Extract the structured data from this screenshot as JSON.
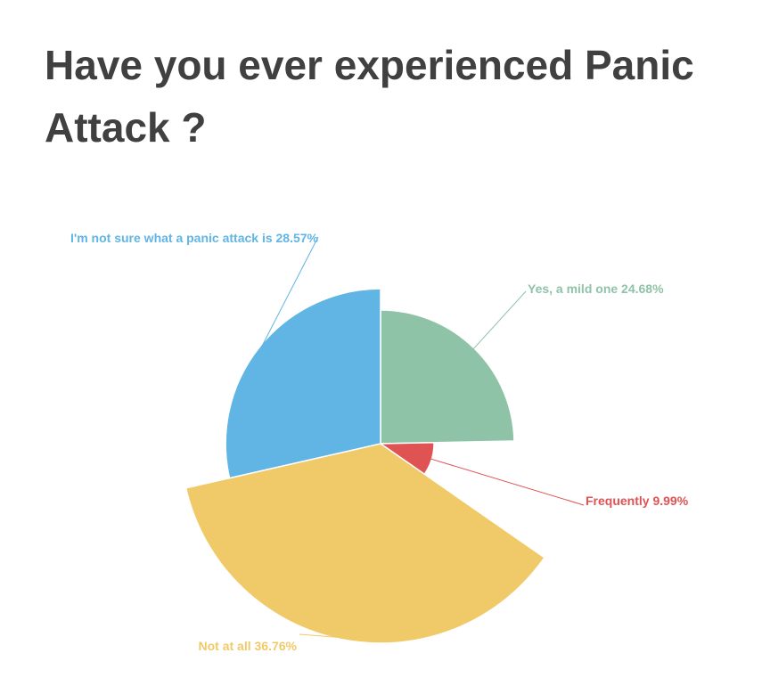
{
  "title": "Have you ever experienced Panic Attack ?",
  "chart_data": {
    "type": "pie",
    "variant": "variable-radius",
    "start_angle": "12 o'clock, clockwise",
    "slices": [
      {
        "label": "Yes, a mild one",
        "value": 24.68,
        "display": "Yes, a mild one 24.68%",
        "color": "#8fc3a8"
      },
      {
        "label": "Frequently",
        "value": 9.99,
        "display": "Frequently 9.99%",
        "color": "#df5353"
      },
      {
        "label": "Not at all",
        "value": 36.76,
        "display": "Not at all 36.76%",
        "color": "#f0ca69"
      },
      {
        "label": "I'm not sure what a panic attack is",
        "value": 28.57,
        "display": "I'm not sure what a panic attack is 28.57%",
        "color": "#60b5e4"
      }
    ]
  }
}
